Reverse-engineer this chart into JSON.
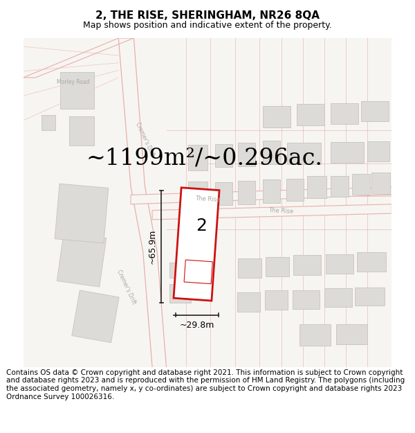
{
  "title": "2, THE RISE, SHERINGHAM, NR26 8QA",
  "subtitle": "Map shows position and indicative extent of the property.",
  "area_text": "~1199m²/~0.296ac.",
  "dim_width": "~29.8m",
  "dim_height": "~65.9m",
  "plot_number": "2",
  "map_bg": "#f5f3f0",
  "road_outline_color": "#e8b0aa",
  "plot_outline_color": "#e8b0aa",
  "building_color": "#dddbd7",
  "building_outline": "#c8c4be",
  "property_fill": "#ffffff",
  "property_outline": "#cc1111",
  "road_label_color": "#aaa8a4",
  "dim_line_color": "#222222",
  "area_fontsize": 24,
  "title_fontsize": 11,
  "subtitle_fontsize": 9,
  "footer_fontsize": 7.5,
  "footer_text": "Contains OS data © Crown copyright and database right 2021. This information is subject to Crown copyright and database rights 2023 and is reproduced with the permission of HM Land Registry. The polygons (including the associated geometry, namely x, y co-ordinates) are subject to Crown copyright and database rights 2023 Ordnance Survey 100026316."
}
